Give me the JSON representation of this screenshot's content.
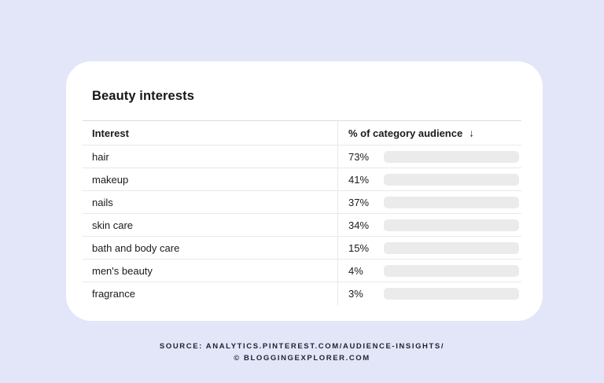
{
  "colors": {
    "background": "#e2e6f8",
    "card": "#ffffff",
    "bar_fill": "#b168e8",
    "bar_track": "#ebebeb",
    "row_border": "#e9e9e9",
    "footer_text": "#23232e"
  },
  "card": {
    "title": "Beauty interests"
  },
  "table": {
    "columns": [
      {
        "label": "Interest"
      },
      {
        "label": "% of category audience",
        "sort_icon": "↓",
        "sort_direction": "descending"
      }
    ]
  },
  "chart_data": {
    "type": "bar",
    "orientation": "horizontal",
    "title": "Beauty interests",
    "categories": [
      "hair",
      "makeup",
      "nails",
      "skin care",
      "bath and body care",
      "men's beauty",
      "fragrance"
    ],
    "values": [
      73,
      41,
      37,
      34,
      15,
      4,
      3
    ],
    "value_labels": [
      "73%",
      "41%",
      "37%",
      "34%",
      "15%",
      "4%",
      "3%"
    ],
    "xlabel": "% of category audience",
    "ylabel": "Interest",
    "xlim": [
      0,
      100
    ],
    "grid": false,
    "legend": false,
    "sort": "descending"
  },
  "footer": {
    "line1": "SOURCE: ANALYTICS.PINTEREST.COM/AUDIENCE-INSIGHTS/",
    "line2": "© BLOGGINGEXPLORER.COM"
  }
}
